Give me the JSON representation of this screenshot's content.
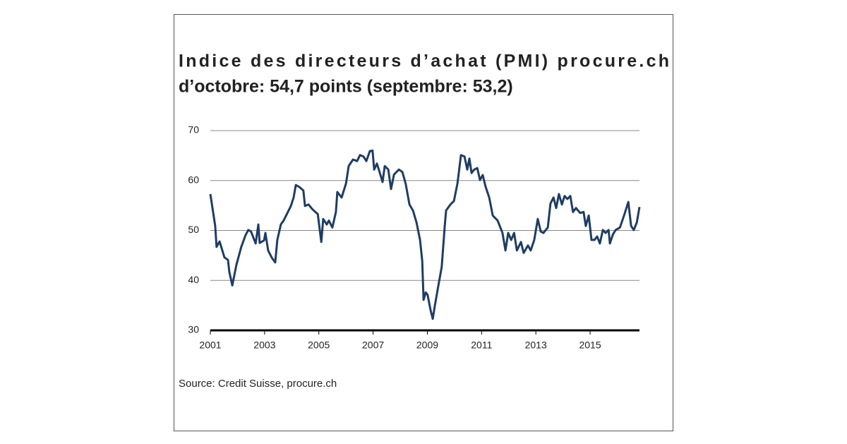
{
  "chart_data": {
    "type": "line",
    "title": "Indice des directeurs d’achat (PMI) procure.ch",
    "subtitle": "d’octobre: 54,7 points (septembre: 53,2)",
    "source": "Source: Credit Suisse, procure.ch",
    "color": "#1f3d63",
    "x": [
      2001.0,
      2001.18,
      2001.23,
      2001.34,
      2001.52,
      2001.65,
      2001.7,
      2001.81,
      2001.96,
      2002.14,
      2002.3,
      2002.4,
      2002.5,
      2002.67,
      2002.77,
      2002.82,
      2002.98,
      2003.03,
      2003.13,
      2003.26,
      2003.39,
      2003.47,
      2003.6,
      2003.7,
      2003.86,
      2003.97,
      2004.07,
      2004.15,
      2004.28,
      2004.43,
      2004.49,
      2004.62,
      2004.77,
      2004.96,
      2005.09,
      2005.16,
      2005.29,
      2005.37,
      2005.5,
      2005.63,
      2005.68,
      2005.84,
      2006.0,
      2006.1,
      2006.26,
      2006.41,
      2006.52,
      2006.65,
      2006.75,
      2006.88,
      2006.98,
      2007.04,
      2007.14,
      2007.25,
      2007.35,
      2007.43,
      2007.56,
      2007.66,
      2007.77,
      2007.95,
      2008.08,
      2008.2,
      2008.34,
      2008.47,
      2008.6,
      2008.73,
      2008.81,
      2008.86,
      2008.94,
      2009.01,
      2009.12,
      2009.2,
      2009.27,
      2009.38,
      2009.53,
      2009.64,
      2009.69,
      2009.85,
      2009.98,
      2010.11,
      2010.24,
      2010.37,
      2010.47,
      2010.55,
      2010.63,
      2010.73,
      2010.84,
      2010.94,
      2011.04,
      2011.15,
      2011.28,
      2011.41,
      2011.59,
      2011.77,
      2011.88,
      2011.98,
      2012.09,
      2012.2,
      2012.3,
      2012.45,
      2012.55,
      2012.71,
      2012.81,
      2012.94,
      2013.07,
      2013.18,
      2013.28,
      2013.44,
      2013.54,
      2013.65,
      2013.75,
      2013.85,
      2013.96,
      2014.06,
      2014.16,
      2014.27,
      2014.37,
      2014.48,
      2014.63,
      2014.76,
      2014.84,
      2014.95,
      2015.05,
      2015.16,
      2015.26,
      2015.36,
      2015.47,
      2015.57,
      2015.68,
      2015.73,
      2015.84,
      2015.94,
      2016.1,
      2016.25,
      2016.41,
      2016.51,
      2016.61,
      2016.72,
      2016.82
    ],
    "values": [
      57.3,
      50.9,
      46.7,
      47.8,
      44.6,
      44.1,
      41.7,
      39.0,
      43.1,
      46.7,
      49.1,
      50.1,
      49.8,
      47.4,
      51.2,
      47.5,
      48.0,
      49.5,
      46.0,
      44.6,
      43.6,
      48.1,
      51.2,
      52.0,
      53.7,
      54.9,
      56.6,
      59.1,
      58.7,
      58.0,
      54.9,
      55.2,
      54.2,
      53.3,
      47.7,
      52.3,
      51.2,
      52.0,
      50.6,
      53.7,
      57.7,
      56.6,
      59.4,
      62.9,
      64.2,
      63.9,
      65.1,
      64.8,
      63.9,
      65.9,
      66.0,
      62.2,
      63.4,
      61.5,
      59.7,
      62.9,
      62.2,
      58.3,
      61.2,
      62.2,
      61.7,
      59.4,
      55.2,
      54.0,
      51.6,
      48.1,
      43.9,
      36.1,
      37.6,
      37.1,
      34.0,
      32.3,
      34.7,
      38.2,
      42.7,
      50.9,
      54.0,
      55.2,
      55.9,
      59.4,
      65.1,
      64.8,
      62.2,
      64.4,
      61.5,
      62.2,
      62.5,
      60.1,
      61.1,
      58.7,
      56.6,
      53.0,
      52.0,
      49.5,
      46.0,
      49.5,
      48.1,
      49.5,
      46.0,
      47.7,
      45.5,
      47.0,
      46.0,
      48.1,
      52.3,
      49.8,
      49.5,
      50.6,
      55.4,
      56.6,
      54.5,
      57.3,
      55.2,
      56.9,
      56.3,
      56.9,
      53.7,
      54.5,
      53.5,
      53.7,
      50.9,
      53.0,
      48.1,
      48.1,
      48.8,
      47.4,
      50.1,
      49.5,
      50.1,
      47.4,
      49.2,
      50.1,
      50.6,
      53.0,
      55.7,
      50.9,
      50.1,
      51.6,
      54.7
    ],
    "xlim": [
      2001,
      2016.82
    ],
    "xticks": [
      2001,
      2003,
      2005,
      2007,
      2009,
      2011,
      2013,
      2015
    ],
    "ylim": [
      30,
      70
    ],
    "yticks": [
      30,
      40,
      50,
      60,
      70
    ],
    "grid": true
  }
}
